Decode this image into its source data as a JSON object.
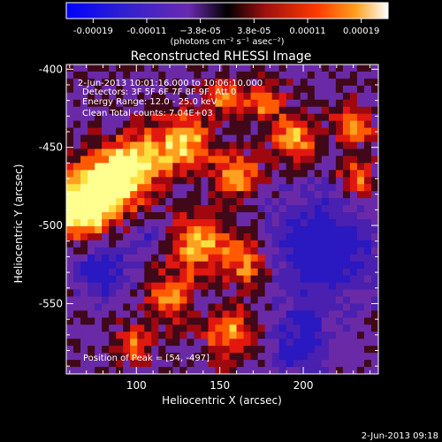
{
  "chart_data": {
    "type": "heatmap",
    "title": "Reconstructed RHESSI Image",
    "xlabel": "Heliocentric X (arcsec)",
    "ylabel": "Heliocentric Y (arcsec)",
    "xlim": [
      58,
      245
    ],
    "ylim": [
      -595,
      -397
    ],
    "x_ticks": [
      100,
      150,
      200
    ],
    "y_ticks": [
      -400,
      -450,
      -500,
      -550
    ],
    "colorbar": {
      "ticks": [
        "-0.00019",
        "-0.00011",
        "−3.8e-05",
        "3.8e-05",
        "0.00011",
        "0.00019"
      ],
      "range": [
        -0.00019,
        0.00019
      ],
      "units_label": "(photons cm⁻² s⁻¹ asec⁻²)"
    },
    "annotations": {
      "time_range": "2-Jun-2013 10:01:16.000 to 10:06:10.000",
      "detectors": "Detectors: 3F 5F 6F 7F 8F 9F, Att 0",
      "energy": "Energy Range: 12.0 - 25.0 keV",
      "clean": "Clean    Total counts: 7.04E+03",
      "peak": "Position of Peak = [54, -497]"
    },
    "colors": {
      "hot_low": "#5a18a0",
      "hot_mid": "#e01010",
      "hot_high": "#ffff60"
    }
  },
  "footer": {
    "timestamp": "2-Jun-2013 09:18"
  }
}
